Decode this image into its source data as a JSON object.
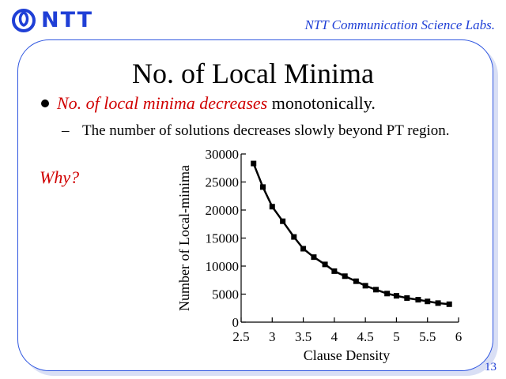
{
  "header": {
    "logo_text": "NTT",
    "lab_name": "NTT Communication Science Labs."
  },
  "slide": {
    "title": "No. of Local Minima",
    "bullet1_emph": "No. of local minima decreases",
    "bullet1_rest": "monotonically.",
    "bullet2_dash": "–",
    "bullet2": "The number of solutions decreases slowly beyond PT region.",
    "why": "Why?",
    "page_number": "13"
  },
  "colors": {
    "brand_blue": "#1f3fd6",
    "emphasis_red": "#d00000"
  },
  "chart_data": {
    "type": "line",
    "xlabel": "Clause Density",
    "ylabel": "Number of Local-minima",
    "xlim": [
      2.5,
      6
    ],
    "ylim": [
      0,
      30000
    ],
    "x_ticks": [
      "2.5",
      "3",
      "3.5",
      "4",
      "4.5",
      "5",
      "5.5",
      "6"
    ],
    "y_ticks": [
      "0",
      "5000",
      "10000",
      "15000",
      "20000",
      "25000",
      "30000"
    ],
    "grid": false,
    "legend": "none",
    "marker": "square",
    "series": [
      {
        "x": [
          2.7,
          2.85,
          3.0,
          3.17,
          3.35,
          3.5,
          3.67,
          3.85,
          4.0,
          4.17,
          4.35,
          4.5,
          4.67,
          4.85,
          5.0,
          5.17,
          5.35,
          5.5,
          5.67,
          5.85
        ],
        "values": [
          28300,
          24100,
          20600,
          18000,
          15200,
          13100,
          11600,
          10300,
          9100,
          8200,
          7300,
          6500,
          5800,
          5100,
          4700,
          4300,
          4000,
          3700,
          3400,
          3200
        ]
      }
    ]
  }
}
